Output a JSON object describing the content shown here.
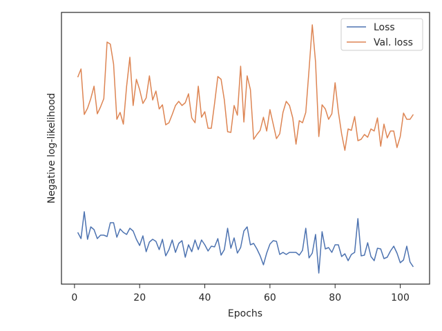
{
  "chart_data": {
    "type": "line",
    "xlabel": "Epochs",
    "ylabel": "Negative log-likelihood",
    "x": [
      1,
      2,
      3,
      4,
      5,
      6,
      7,
      8,
      9,
      10,
      11,
      12,
      13,
      14,
      15,
      16,
      17,
      18,
      19,
      20,
      21,
      22,
      23,
      24,
      25,
      26,
      27,
      28,
      29,
      30,
      31,
      32,
      33,
      34,
      35,
      36,
      37,
      38,
      39,
      40,
      41,
      42,
      43,
      44,
      45,
      46,
      47,
      48,
      49,
      50,
      51,
      52,
      53,
      54,
      55,
      56,
      57,
      58,
      59,
      60,
      61,
      62,
      63,
      64,
      65,
      66,
      67,
      68,
      69,
      70,
      71,
      72,
      73,
      74,
      75,
      76,
      77,
      78,
      79,
      80,
      81,
      82,
      83,
      84,
      85,
      86,
      87,
      88,
      89,
      90,
      91,
      92,
      93,
      94,
      95,
      96,
      97,
      98,
      99,
      100,
      101,
      102,
      103,
      104
    ],
    "series": [
      {
        "name": "Loss",
        "color": "#4c72b0",
        "values": [
          75,
          66,
          105,
          65,
          83,
          79,
          66,
          71,
          71,
          69,
          89,
          89,
          68,
          80,
          75,
          72,
          81,
          77,
          65,
          56,
          70,
          47,
          61,
          65,
          62,
          50,
          65,
          41,
          50,
          64,
          46,
          59,
          63,
          39,
          57,
          47,
          64,
          50,
          64,
          57,
          48,
          55,
          54,
          66,
          42,
          50,
          81,
          52,
          67,
          45,
          53,
          77,
          83,
          57,
          59,
          51,
          41,
          28,
          45,
          58,
          63,
          62,
          43,
          46,
          43,
          46,
          46,
          46,
          42,
          49,
          81,
          38,
          45,
          72,
          16,
          76,
          51,
          53,
          46,
          57,
          57,
          40,
          44,
          34,
          43,
          46,
          95,
          41,
          42,
          60,
          40,
          34,
          52,
          51,
          37,
          39,
          48,
          55,
          45,
          31,
          35,
          55,
          32,
          25
        ]
      },
      {
        "name": "Val. loss",
        "color": "#dd8452",
        "values": [
          300,
          312,
          246,
          255,
          269,
          287,
          247,
          257,
          269,
          351,
          348,
          319,
          239,
          249,
          232,
          287,
          329,
          259,
          297,
          282,
          262,
          270,
          302,
          267,
          280,
          254,
          260,
          231,
          234,
          246,
          259,
          265,
          259,
          263,
          276,
          241,
          234,
          287,
          242,
          250,
          226,
          226,
          262,
          301,
          297,
          267,
          221,
          220,
          259,
          245,
          316,
          235,
          302,
          282,
          210,
          217,
          223,
          242,
          222,
          253,
          232,
          211,
          218,
          249,
          265,
          259,
          241,
          203,
          237,
          234,
          249,
          311,
          376,
          322,
          214,
          260,
          254,
          239,
          247,
          292,
          250,
          218,
          194,
          225,
          223,
          243,
          208,
          210,
          217,
          213,
          225,
          222,
          241,
          200,
          232,
          212,
          222,
          222,
          198,
          214,
          248,
          239,
          239,
          246
        ]
      }
    ],
    "xlim": [
      -4,
      109
    ],
    "xticks": [
      0,
      20,
      40,
      60,
      80,
      100
    ],
    "ylim": [
      0,
      394
    ],
    "legend": "upper right"
  }
}
